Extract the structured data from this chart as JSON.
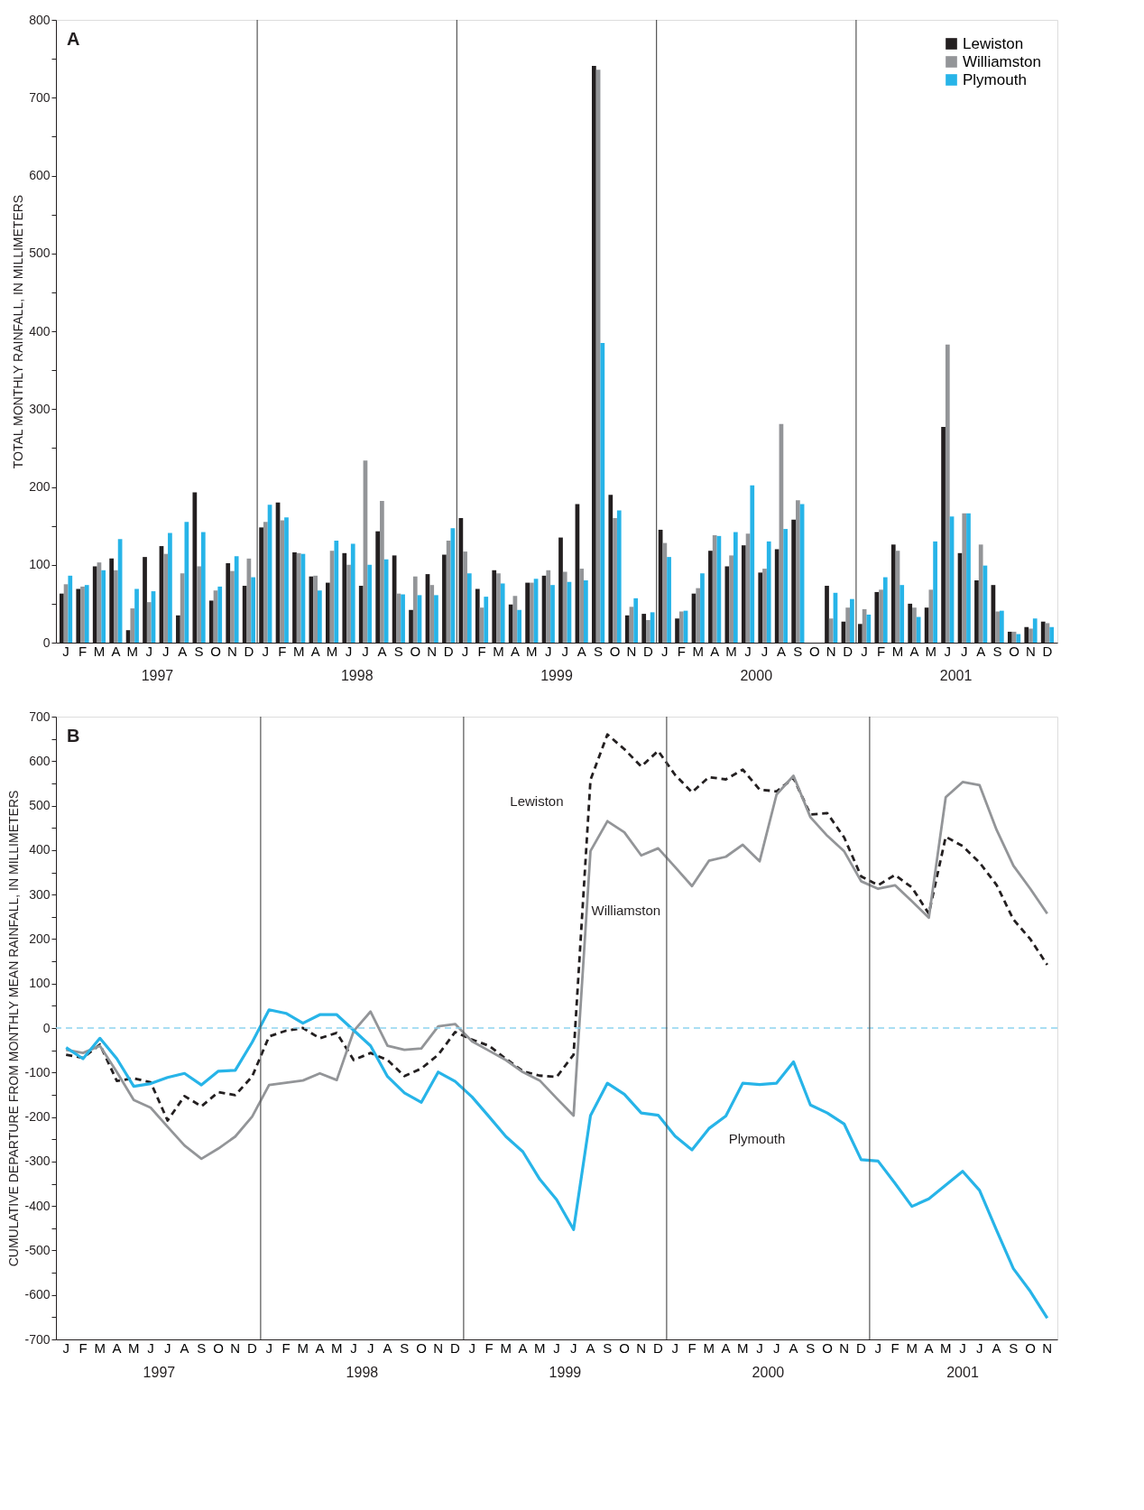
{
  "chart_data": [
    {
      "type": "bar",
      "title": "A",
      "ylabel": "TOTAL MONTHLY RAINFALL, IN MILLIMETERS",
      "categories": [
        "J",
        "F",
        "M",
        "A",
        "M",
        "J",
        "J",
        "A",
        "S",
        "O",
        "N",
        "D",
        "J",
        "F",
        "M",
        "A",
        "M",
        "J",
        "J",
        "A",
        "S",
        "O",
        "N",
        "D",
        "J",
        "F",
        "M",
        "A",
        "M",
        "J",
        "J",
        "A",
        "S",
        "O",
        "N",
        "D",
        "J",
        "F",
        "M",
        "A",
        "M",
        "J",
        "J",
        "A",
        "S",
        "O",
        "N",
        "D",
        "J",
        "F",
        "M",
        "A",
        "M",
        "J",
        "J",
        "A",
        "S",
        "O",
        "N",
        "D"
      ],
      "series": [
        {
          "name": "Lewiston",
          "color": "#231f20",
          "values": [
            63,
            69,
            98,
            108,
            16,
            110,
            124,
            35,
            193,
            54,
            102,
            73,
            148,
            180,
            116,
            85,
            77,
            115,
            73,
            143,
            112,
            42,
            88,
            113,
            160,
            69,
            93,
            49,
            77,
            86,
            135,
            178,
            741,
            190,
            35,
            37,
            145,
            31,
            63,
            118,
            98,
            125,
            90,
            120,
            158,
            0,
            73,
            27,
            24,
            65,
            126,
            50,
            45,
            277,
            115,
            80,
            74,
            14,
            20,
            27
          ]
        },
        {
          "name": "Williamston",
          "color": "#939598",
          "values": [
            75,
            72,
            103,
            93,
            44,
            52,
            114,
            89,
            98,
            67,
            92,
            108,
            155,
            157,
            115,
            86,
            118,
            100,
            234,
            182,
            63,
            85,
            74,
            131,
            117,
            45,
            89,
            60,
            77,
            93,
            91,
            95,
            736,
            160,
            46,
            29,
            128,
            40,
            70,
            138,
            112,
            140,
            95,
            281,
            183,
            0,
            31,
            45,
            43,
            68,
            118,
            45,
            68,
            383,
            166,
            126,
            40,
            14,
            18,
            25
          ]
        },
        {
          "name": "Plymouth",
          "color": "#27b4e8",
          "values": [
            86,
            74,
            93,
            133,
            69,
            66,
            141,
            155,
            142,
            72,
            111,
            84,
            177,
            161,
            114,
            67,
            131,
            127,
            100,
            107,
            62,
            61,
            61,
            147,
            89,
            59,
            76,
            42,
            82,
            74,
            78,
            80,
            385,
            170,
            57,
            39,
            110,
            41,
            89,
            137,
            142,
            202,
            130,
            146,
            178,
            0,
            64,
            56,
            36,
            84,
            74,
            33,
            130,
            162,
            166,
            99,
            41,
            11,
            31,
            20
          ]
        }
      ],
      "ylim": [
        0,
        800
      ],
      "yticks": [
        0,
        {
          "value": 50,
          "label": null
        },
        100,
        {
          "value": 150,
          "label": null
        },
        200,
        {
          "value": 250,
          "label": null
        },
        300,
        {
          "value": 350,
          "label": null
        },
        400,
        {
          "value": 450,
          "label": null
        },
        500,
        {
          "value": 550,
          "label": null
        },
        600,
        {
          "value": 650,
          "label": null
        },
        700,
        {
          "value": 750,
          "label": null
        },
        800
      ],
      "annotations": [
        "1997",
        "1998",
        "1999",
        "2000",
        "2001"
      ],
      "legend": "top right",
      "grid": false
    },
    {
      "type": "line",
      "title": "B",
      "ylabel": "CUMULATIVE DEPARTURE FROM MONTHLY MEAN RAINFALL, IN MILLIMETERS",
      "categories": [
        "J",
        "F",
        "M",
        "A",
        "M",
        "J",
        "J",
        "A",
        "S",
        "O",
        "N",
        "D",
        "J",
        "F",
        "M",
        "A",
        "M",
        "J",
        "J",
        "A",
        "S",
        "O",
        "N",
        "D",
        "J",
        "F",
        "M",
        "A",
        "M",
        "J",
        "J",
        "A",
        "S",
        "O",
        "N",
        "D",
        "J",
        "F",
        "M",
        "A",
        "M",
        "J",
        "J",
        "A",
        "S",
        "O",
        "N",
        "D",
        "J",
        "F",
        "M",
        "A",
        "M",
        "J",
        "J",
        "A",
        "S",
        "O",
        "N"
      ],
      "series": [
        {
          "name": "Lewiston",
          "color": "#231f20",
          "line_style": "dashed",
          "values": [
            -60,
            -67,
            -37,
            -119,
            -113,
            -122,
            -208,
            -153,
            -176,
            -144,
            -151,
            -109,
            -19,
            -6,
            0,
            -23,
            -11,
            -72,
            -56,
            -72,
            -108,
            -91,
            -60,
            -9,
            -26,
            -40,
            -69,
            -97,
            -107,
            -110,
            -60,
            558,
            660,
            627,
            588,
            623,
            569,
            530,
            564,
            559,
            581,
            536,
            532,
            562,
            480,
            483,
            428,
            341,
            321,
            344,
            316,
            257,
            430,
            409,
            372,
            322,
            244,
            200,
            142
          ]
        },
        {
          "name": "Williamston",
          "color": "#939598",
          "line_style": "solid",
          "values": [
            -49,
            -56,
            -40,
            -99,
            -162,
            -179,
            -222,
            -264,
            -294,
            -271,
            -244,
            -199,
            -128,
            -123,
            -118,
            -102,
            -117,
            -7,
            37,
            -40,
            -49,
            -46,
            4,
            9,
            -30,
            -51,
            -72,
            -99,
            -118,
            -158,
            -197,
            398,
            465,
            440,
            388,
            404,
            362,
            319,
            376,
            385,
            412,
            375,
            525,
            567,
            474,
            432,
            397,
            330,
            313,
            321,
            285,
            248,
            519,
            553,
            546,
            446,
            365,
            313,
            257
          ]
        },
        {
          "name": "Plymouth",
          "color": "#27b4e8",
          "line_style": "solid",
          "values": [
            -44,
            -69,
            -23,
            -69,
            -131,
            -125,
            -111,
            -102,
            -128,
            -97,
            -95,
            -32,
            41,
            33,
            11,
            30,
            30,
            -5,
            -40,
            -109,
            -146,
            -167,
            -99,
            -120,
            -155,
            -199,
            -244,
            -278,
            -340,
            -386,
            -453,
            -197,
            -124,
            -149,
            -191,
            -196,
            -243,
            -274,
            -226,
            -198,
            -124,
            -127,
            -124,
            -76,
            -173,
            -191,
            -216,
            -296,
            -299,
            -349,
            -401,
            -384,
            -353,
            -322,
            -365,
            -454,
            -541,
            -592,
            -652
          ]
        }
      ],
      "ylim": [
        -700,
        700
      ],
      "yticks": [
        -700,
        {
          "value": -650,
          "label": null
        },
        -600,
        {
          "value": -550,
          "label": null
        },
        -500,
        {
          "value": -450,
          "label": null
        },
        -400,
        {
          "value": -350,
          "label": null
        },
        -300,
        {
          "value": -250,
          "label": null
        },
        -200,
        {
          "value": -150,
          "label": null
        },
        -100,
        {
          "value": -50,
          "label": null
        },
        0,
        {
          "value": 50,
          "label": null
        },
        100,
        {
          "value": 150,
          "label": null
        },
        200,
        {
          "value": 250,
          "label": null
        },
        300,
        {
          "value": 350,
          "label": null
        },
        400,
        {
          "value": 450,
          "label": null
        },
        500,
        {
          "value": 550,
          "label": null
        },
        600,
        {
          "value": 650,
          "label": null
        },
        700
      ],
      "ref_lines": [
        {
          "axis": "y",
          "value": 0,
          "label": null,
          "color": "#8fd3f0",
          "line_style": "dashed"
        }
      ],
      "annotations": [
        "1997",
        "1998",
        "1999",
        "2000",
        "2001"
      ],
      "legend": false,
      "grid": false
    }
  ]
}
